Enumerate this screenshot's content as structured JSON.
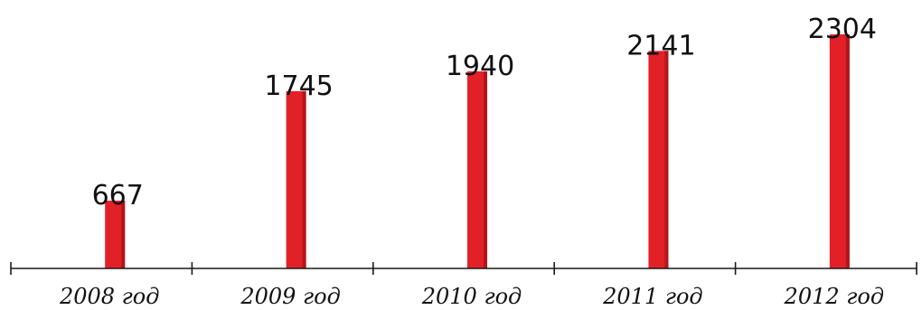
{
  "chart_data": {
    "type": "bar",
    "categories": [
      "2008 год",
      "2009 год",
      "2010 год",
      "2011 год",
      "2012 год"
    ],
    "values": [
      667,
      1745,
      1940,
      2141,
      2304
    ],
    "title": "",
    "xlabel": "",
    "ylabel": "",
    "ylim": [
      0,
      2304
    ],
    "grid": false,
    "legend": "none",
    "colors": {
      "bar": "#e12127",
      "bar_edge": "#b3151a",
      "axis": "#1a1a1a",
      "text": "#111111"
    }
  }
}
